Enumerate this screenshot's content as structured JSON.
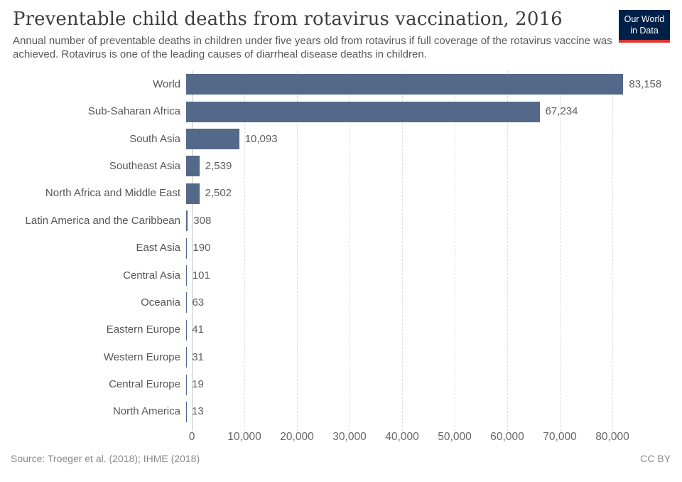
{
  "header": {
    "title": "Preventable child deaths from rotavirus vaccination, 2016",
    "subtitle": "Annual number of preventable deaths in children under five years old from rotavirus if full coverage of the rotavirus vaccine was achieved. Rotavirus is one of the leading causes of diarrheal disease deaths in children.",
    "logo": {
      "line1": "Our World",
      "line2": "in Data",
      "background_color": "#002147",
      "stripe_color": "#dc352d"
    }
  },
  "chart_data": {
    "type": "bar",
    "orientation": "horizontal",
    "title": "Preventable child deaths from rotavirus vaccination, 2016",
    "categories": [
      "World",
      "Sub-Saharan Africa",
      "South Asia",
      "Southeast Asia",
      "North Africa and Middle East",
      "Latin America and the Caribbean",
      "East Asia",
      "Central Asia",
      "Oceania",
      "Eastern Europe",
      "Western Europe",
      "Central Europe",
      "North America"
    ],
    "values": [
      83158,
      67234,
      10093,
      2539,
      2502,
      308,
      190,
      101,
      63,
      41,
      31,
      19,
      13
    ],
    "value_labels": [
      "83,158",
      "67,234",
      "10,093",
      "2,539",
      "2,502",
      "308",
      "190",
      "101",
      "63",
      "41",
      "31",
      "19",
      "13"
    ],
    "xlabel": "",
    "ylabel": "",
    "xlim": [
      0,
      80000
    ],
    "x_ticks": [
      0,
      10000,
      20000,
      30000,
      40000,
      50000,
      60000,
      70000,
      80000
    ],
    "x_tick_labels": [
      "0",
      "10,000",
      "20,000",
      "30,000",
      "40,000",
      "50,000",
      "60,000",
      "70,000",
      "80,000"
    ],
    "grid": "vertical-dashed",
    "legend": "none",
    "bar_color": "#54698a"
  },
  "footer": {
    "source": "Source: Troeger et al. (2018); IHME (2018)",
    "license": "CC BY"
  }
}
